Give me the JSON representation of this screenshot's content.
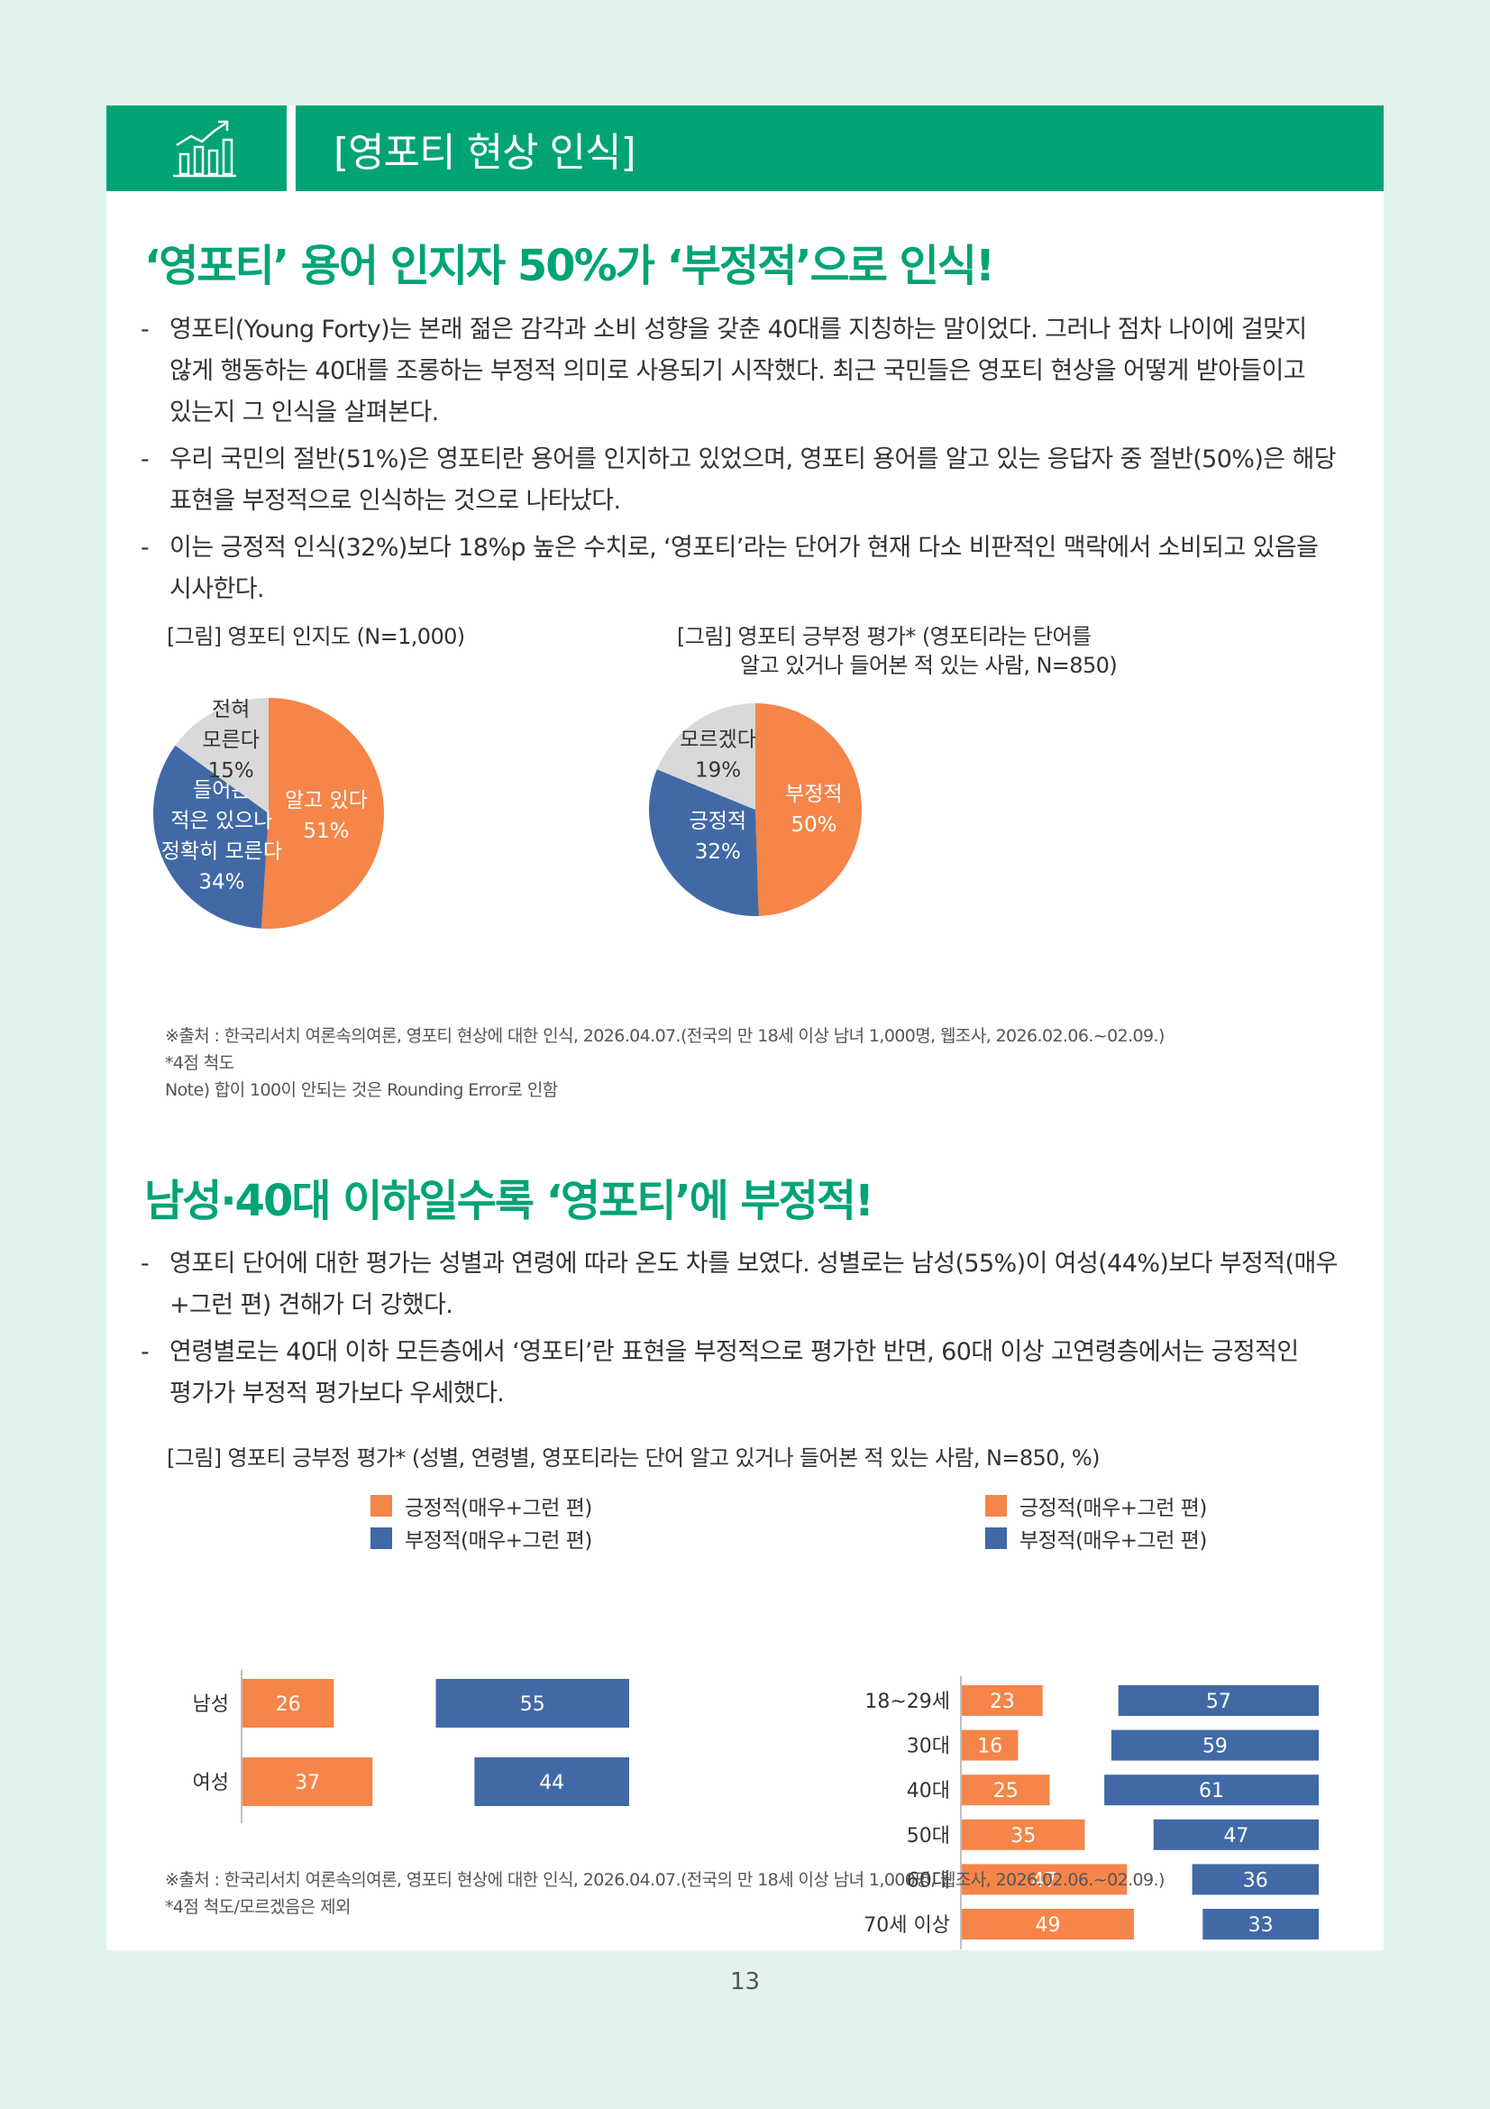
{
  "header": {
    "title": "[영포티 현상 인식]",
    "icon": "bar-chart-growth-icon"
  },
  "section1": {
    "title": "‘영포티’ 용어 인지자 50%가 ‘부정적’으로 인식!",
    "bullets": [
      "영포티(Young Forty)는 본래 젊은 감각과 소비 성향을 갖춘 40대를 지칭하는 말이었다. 그러나 점차 나이에 걸맞지 않게 행동하는 40대를 조롱하는 부정적 의미로 사용되기 시작했다. 최근 국민들은 영포티 현상을 어떻게 받아들이고 있는지 그 인식을 살펴본다.",
      "우리 국민의 절반(51%)은 영포티란 용어를 인지하고 있었으며, 영포티 용어를 알고 있는 응답자 중 절반(50%)은 해당 표현을 부정적으로 인식하는 것으로 나타났다.",
      "이는 긍정적 인식(32%)보다 18%p 높은 수치로, ‘영포티’라는 단어가 현재 다소 비판적인 맥락에서 소비되고 있음을 시사한다."
    ],
    "fig1_caption": "[그림] 영포티 인지도 (N=1,000)",
    "fig2_caption_1": "[그림] 영포티 긍부정 평가* (영포티라는 단어를",
    "fig2_caption_2": "알고 있거나 들어본 적 있는 사람, N=850)",
    "notes": [
      "※출처 : 한국리서치 여론속의여론, 영포티 현상에 대한 인식, 2026.04.07.(전국의 만 18세 이상 남녀 1,000명, 웹조사, 2026.02.06.~02.09.)",
      "*4점 척도",
      "Note) 합이 100이 안되는 것은 Rounding Error로 인함"
    ]
  },
  "section2": {
    "title": "남성·40대 이하일수록 ‘영포티’에 부정적!",
    "bullets": [
      "영포티 단어에 대한 평가는 성별과 연령에 따라 온도 차를 보였다. 성별로는 남성(55%)이 여성(44%)보다 부정적(매우+그런 편) 견해가 더 강했다.",
      "연령별로는 40대 이하 모든층에서 ‘영포티’란 표현을 부정적으로 평가한 반면, 60대 이상 고연령층에서는 긍정적인 평가가 부정적 평가보다 우세했다."
    ],
    "fig_caption": "[그림] 영포티 긍부정 평가* (성별, 연령별, 영포티라는 단어 알고 있거나 들어본 적 있는 사람, N=850, %)",
    "notes": [
      "※출처 : 한국리서치 여론속의여론, 영포티 현상에 대한 인식, 2026.04.07.(전국의 만 18세 이상 남녀 1,000명, 웹조사, 2026.02.06.~02.09.)",
      "*4점 척도/모르겠음은 제외"
    ]
  },
  "page_number": "13",
  "colors": {
    "green": "#00a474",
    "orange": "#f58549",
    "blue": "#4169a6",
    "gray": "#d9d9d9"
  },
  "chart_data": [
    {
      "type": "pie",
      "title": "[그림] 영포티 인지도 (N=1,000)",
      "slices": [
        {
          "label_lines": [
            "알고 있다",
            "51%"
          ],
          "value": 51,
          "color": "#f58549",
          "text_color": "#ffffff"
        },
        {
          "label_lines": [
            "들어본",
            "적은 있으나",
            "정확히 모른다",
            "34%"
          ],
          "value": 34,
          "color": "#4169a6",
          "text_color": "#ffffff"
        },
        {
          "label_lines": [
            "전혀",
            "모른다",
            "15%"
          ],
          "value": 15,
          "color": "#d9d9d9",
          "text_color": "#333333"
        }
      ]
    },
    {
      "type": "pie",
      "title": "[그림] 영포티 긍부정 평가* (영포티라는 단어를 알고 있거나 들어본 적 있는 사람, N=850)",
      "slices": [
        {
          "label_lines": [
            "부정적",
            "50%"
          ],
          "value": 50,
          "color": "#f58549",
          "text_color": "#ffffff"
        },
        {
          "label_lines": [
            "긍정적",
            "32%"
          ],
          "value": 32,
          "color": "#4169a6",
          "text_color": "#ffffff"
        },
        {
          "label_lines": [
            "모르겠다",
            "19%"
          ],
          "value": 19,
          "color": "#d9d9d9",
          "text_color": "#333333"
        }
      ]
    },
    {
      "type": "bar",
      "title": "[그림] 영포티 긍부정 평가* (성별)",
      "categories": [
        "남성",
        "여성"
      ],
      "series": [
        {
          "name": "긍정적(매우+그런 편)",
          "values": [
            26,
            37
          ],
          "color": "#f58549"
        },
        {
          "name": "부정적(매우+그런 편)",
          "values": [
            55,
            44
          ],
          "color": "#4169a6"
        }
      ]
    },
    {
      "type": "bar",
      "title": "[그림] 영포티 긍부정 평가* (연령별)",
      "categories": [
        "18~29세",
        "30대",
        "40대",
        "50대",
        "60대",
        "70세 이상"
      ],
      "series": [
        {
          "name": "긍정적(매우+그런 편)",
          "values": [
            23,
            16,
            25,
            35,
            47,
            49
          ],
          "color": "#f58549"
        },
        {
          "name": "부정적(매우+그런 편)",
          "values": [
            57,
            59,
            61,
            47,
            36,
            33
          ],
          "color": "#4169a6"
        }
      ]
    }
  ]
}
